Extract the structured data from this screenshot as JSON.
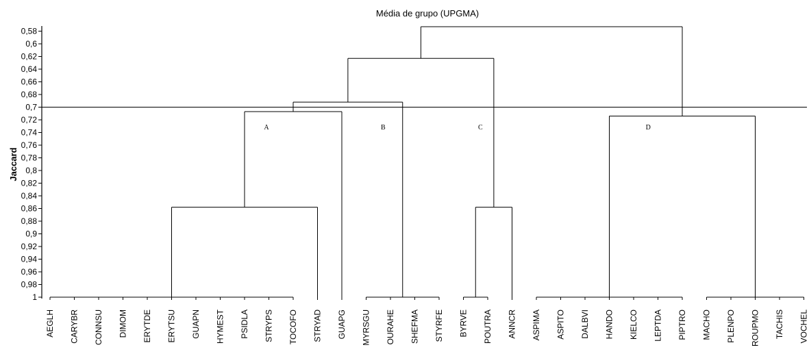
{
  "chart_data": {
    "type": "dendrogram",
    "title": "Média de grupo (UPGMA)",
    "ylabel": "Jaccard",
    "ylim": [
      0.572,
      1
    ],
    "y_axis_inverted": true,
    "y_ticks": [
      "0,58",
      "0,6",
      "0,62",
      "0,64",
      "0,66",
      "0,68",
      "0,7",
      "0,72",
      "0,74",
      "0,76",
      "0,78",
      "0,8",
      "0,82",
      "0,84",
      "0,86",
      "0,88",
      "0,9",
      "0,92",
      "0,94",
      "0,96",
      "0,98",
      "1"
    ],
    "cut_line": 0.7,
    "leaves": [
      "AEGLH",
      "CARYBR",
      "CONNSU",
      "DIMOM",
      "ERYTDE",
      "ERYTSU",
      "GUAPN",
      "HYMEST",
      "PSIDLA",
      "STRYPS",
      "TOCOFO",
      "STRYAD",
      "GUAPG",
      "MYRSGU",
      "OURAHE",
      "SHEFMA",
      "STYRFE",
      "BYRVE",
      "POUTRA",
      "ANNCR",
      "ASPIMA",
      "ASPITO",
      "DALBVI",
      "HANDO",
      "KIELCO",
      "LEPTDA",
      "PIPTRO",
      "MACHO",
      "PLENPO",
      "ROUPMO",
      "TACHIS",
      "VOCHEL"
    ],
    "merges": [
      {
        "id": "g1",
        "children": [
          "AEGLH",
          "CARYBR",
          "CONNSU",
          "DIMOM",
          "ERYTDE",
          "ERYTSU",
          "GUAPN",
          "HYMEST",
          "PSIDLA",
          "STRYPS",
          "TOCOFO"
        ],
        "height": 1
      },
      {
        "id": "g2",
        "children": [
          "MYRSGU",
          "OURAHE",
          "SHEFMA",
          "STYRFE"
        ],
        "height": 1
      },
      {
        "id": "g3",
        "children": [
          "BYRVE",
          "POUTRA"
        ],
        "height": 1
      },
      {
        "id": "g4",
        "children": [
          "ASPIMA",
          "ASPITO",
          "DALBVI",
          "HANDO",
          "KIELCO",
          "LEPTDA",
          "PIPTRO"
        ],
        "height": 1
      },
      {
        "id": "g5",
        "children": [
          "MACHO",
          "PLENPO",
          "ROUPMO",
          "TACHIS",
          "VOCHEL"
        ],
        "height": 1
      },
      {
        "id": "n1",
        "children": [
          "g1",
          "STRYAD"
        ],
        "height": 0.858
      },
      {
        "id": "n2",
        "children": [
          "g3",
          "ANNCR"
        ],
        "height": 0.858
      },
      {
        "id": "n3",
        "children": [
          "n1",
          "GUAPG"
        ],
        "height": 0.707
      },
      {
        "id": "n4",
        "children": [
          "g4",
          "g5"
        ],
        "height": 0.714
      },
      {
        "id": "n5",
        "children": [
          "n3",
          "g2"
        ],
        "height": 0.692
      },
      {
        "id": "n6",
        "children": [
          "n5",
          "n2"
        ],
        "height": 0.623
      },
      {
        "id": "n7",
        "children": [
          "n6",
          "n4"
        ],
        "height": 0.573
      }
    ],
    "group_labels": [
      {
        "text": "A",
        "leaf_pos": 8.9
      },
      {
        "text": "B",
        "leaf_pos": 13.7
      },
      {
        "text": "C",
        "leaf_pos": 17.7
      },
      {
        "text": "D",
        "leaf_pos": 24.6
      }
    ]
  }
}
